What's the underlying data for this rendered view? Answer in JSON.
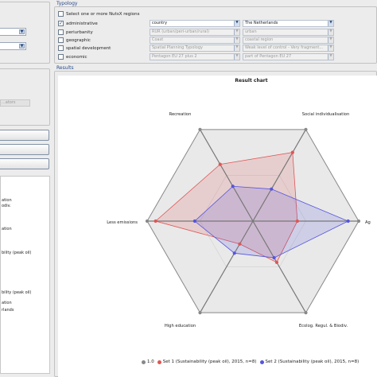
{
  "left_panel": {
    "faded_field": "...ators",
    "list_items": [
      "ation",
      "odiv.",
      "ation",
      "bility (peak oil)",
      "bility (peak oil)",
      "ation",
      "rlands"
    ]
  },
  "typology": {
    "title": "Typology",
    "select_label": "Select one or more NutsX regions",
    "rows": [
      {
        "label": "administrative",
        "checked": true,
        "combo1": "country",
        "combo2": "The Netherlands",
        "enabled": true
      },
      {
        "label": "periurbanity",
        "checked": false,
        "combo1": "RUR (urban/peri-urban/rural)",
        "combo2": "urban",
        "enabled": false
      },
      {
        "label": "geographic",
        "checked": false,
        "combo1": "Coast",
        "combo2": "coastal region",
        "enabled": false
      },
      {
        "label": "spatial development",
        "checked": false,
        "combo1": "Spatial Planning Typology",
        "combo2": "Weak level of control - Very fragment...",
        "enabled": false
      },
      {
        "label": "economic",
        "checked": false,
        "combo1": "Pentagon EU 27 plus 2",
        "combo2": "part of Pentagon EU 27",
        "enabled": false
      }
    ]
  },
  "results": {
    "title": "Results"
  },
  "chart_data": {
    "type": "radar",
    "title": "Result chart",
    "axes": [
      "Recreation",
      "Social individualisation",
      "Ag",
      "Ecolog. Regul. & Biodiv.",
      "High education",
      "Less emissions"
    ],
    "series": [
      {
        "name": "1.0",
        "color": "#888888",
        "values": [
          1.0,
          1.0,
          1.0,
          1.0,
          1.0,
          1.0
        ]
      },
      {
        "name": "Set 1 (Sustainability (peak oil), 2015, n=8)",
        "color": "#e05555",
        "values": [
          0.62,
          0.75,
          0.42,
          0.45,
          0.25,
          0.92
        ]
      },
      {
        "name": "Set 2 (Sustainability (peak oil), 2015, n=8)",
        "color": "#5555dd",
        "values": [
          0.38,
          0.35,
          0.9,
          0.4,
          0.35,
          0.55
        ]
      }
    ],
    "ylim": [
      0,
      1
    ],
    "grid": "hexagonal",
    "legend_position": "bottom"
  }
}
